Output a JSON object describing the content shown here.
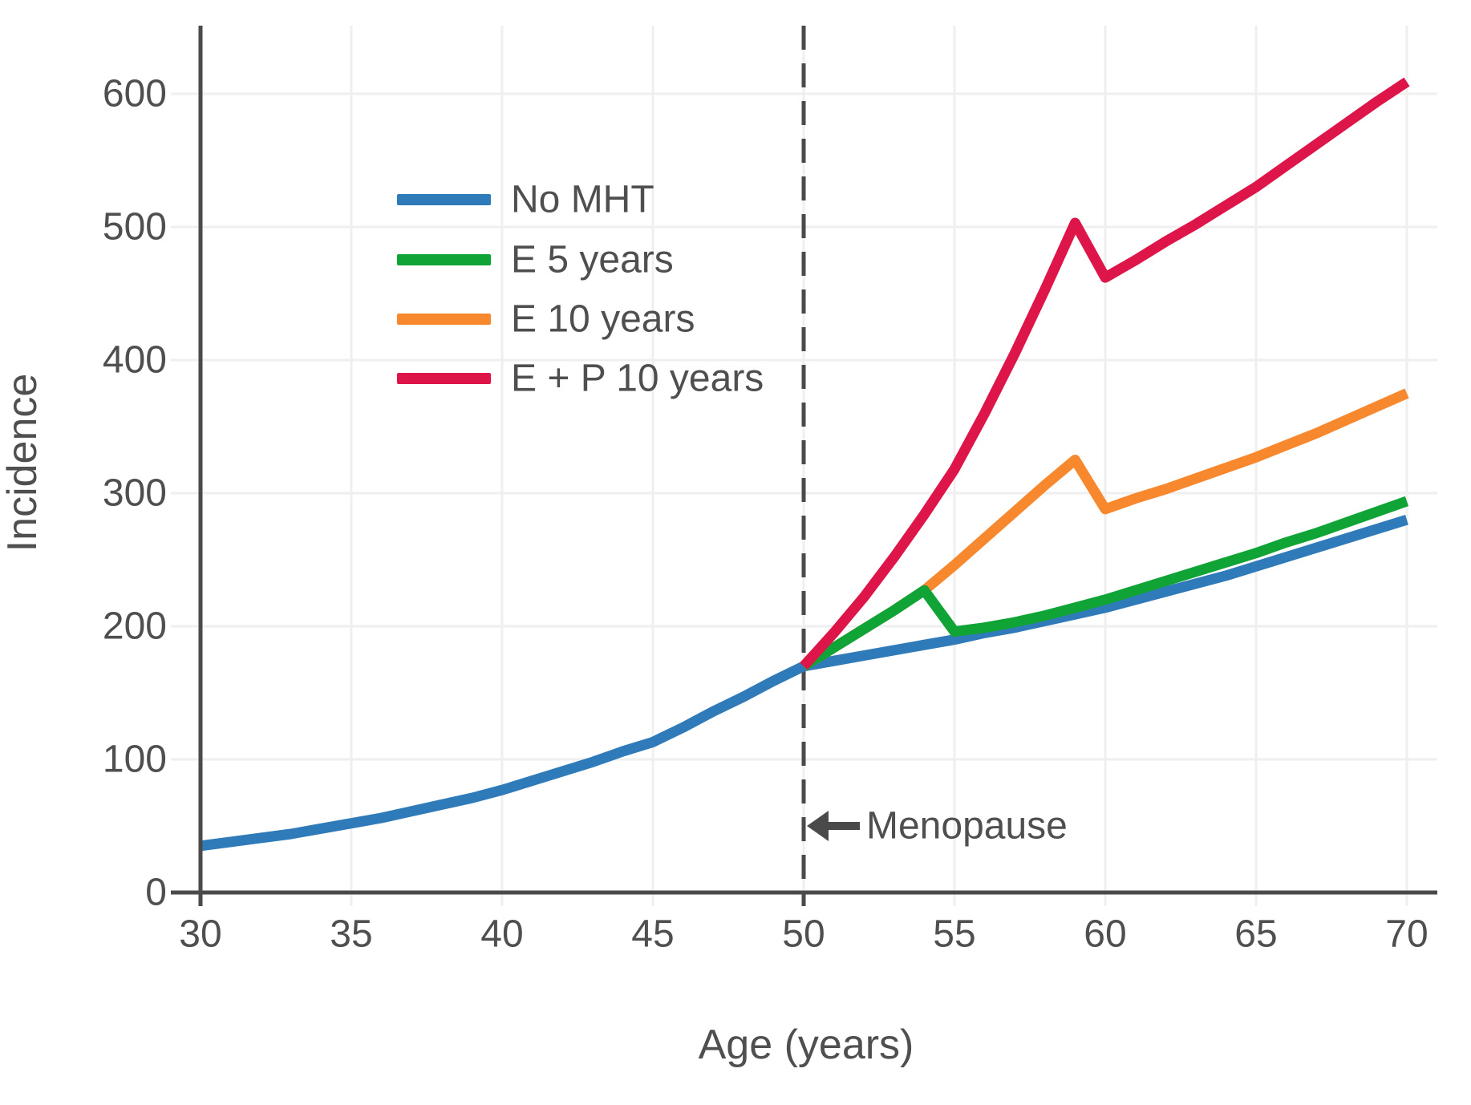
{
  "chart_data": {
    "type": "line",
    "title": "",
    "xlabel": "Age (years)",
    "ylabel": "Incidence",
    "x_ticks": [
      30,
      35,
      40,
      45,
      50,
      55,
      60,
      65,
      70
    ],
    "y_ticks": [
      0,
      100,
      200,
      300,
      400,
      500,
      600
    ],
    "xlim": [
      30,
      71
    ],
    "ylim": [
      0,
      650
    ],
    "grid": true,
    "legend_position": "upper-left-inside",
    "annotation": {
      "label": "Menopause",
      "arrow_direction": "left",
      "points_to_x": 50
    },
    "reference_line": {
      "x": 50,
      "style": "dashed",
      "color": "#4a4a4a"
    },
    "series": [
      {
        "name": "No MHT",
        "color": "#2f7ab8",
        "points": [
          [
            30,
            35
          ],
          [
            31,
            38
          ],
          [
            32,
            41
          ],
          [
            33,
            44
          ],
          [
            34,
            48
          ],
          [
            35,
            52
          ],
          [
            36,
            56
          ],
          [
            37,
            61
          ],
          [
            38,
            66
          ],
          [
            39,
            71
          ],
          [
            40,
            77
          ],
          [
            41,
            84
          ],
          [
            42,
            91
          ],
          [
            43,
            98
          ],
          [
            44,
            106
          ],
          [
            45,
            113
          ],
          [
            46,
            124
          ],
          [
            47,
            136
          ],
          [
            48,
            147
          ],
          [
            49,
            159
          ],
          [
            50,
            170
          ],
          [
            51,
            174
          ],
          [
            52,
            178
          ],
          [
            53,
            182
          ],
          [
            54,
            186
          ],
          [
            55,
            190
          ],
          [
            56,
            195
          ],
          [
            57,
            199
          ],
          [
            58,
            204
          ],
          [
            59,
            209
          ],
          [
            60,
            214
          ],
          [
            61,
            220
          ],
          [
            62,
            226
          ],
          [
            63,
            232
          ],
          [
            64,
            238
          ],
          [
            65,
            245
          ],
          [
            66,
            252
          ],
          [
            67,
            259
          ],
          [
            68,
            266
          ],
          [
            69,
            273
          ],
          [
            70,
            280
          ]
        ]
      },
      {
        "name": "E 5 years",
        "color": "#10a437",
        "points": [
          [
            50,
            170
          ],
          [
            51,
            184
          ],
          [
            52,
            198
          ],
          [
            53,
            212
          ],
          [
            54,
            227
          ],
          [
            55,
            196
          ],
          [
            56,
            199
          ],
          [
            57,
            203
          ],
          [
            58,
            208
          ],
          [
            59,
            214
          ],
          [
            60,
            220
          ],
          [
            61,
            227
          ],
          [
            62,
            234
          ],
          [
            63,
            241
          ],
          [
            64,
            248
          ],
          [
            65,
            255
          ],
          [
            66,
            263
          ],
          [
            67,
            270
          ],
          [
            68,
            278
          ],
          [
            69,
            286
          ],
          [
            70,
            294
          ]
        ]
      },
      {
        "name": "E 10 years",
        "color": "#f8882e",
        "points": [
          [
            50,
            170
          ],
          [
            51,
            184
          ],
          [
            52,
            198
          ],
          [
            53,
            212
          ],
          [
            54,
            227
          ],
          [
            55,
            246
          ],
          [
            56,
            266
          ],
          [
            57,
            286
          ],
          [
            58,
            306
          ],
          [
            59,
            325
          ],
          [
            60,
            288
          ],
          [
            61,
            296
          ],
          [
            62,
            303
          ],
          [
            63,
            311
          ],
          [
            64,
            319
          ],
          [
            65,
            327
          ],
          [
            66,
            336
          ],
          [
            67,
            345
          ],
          [
            68,
            355
          ],
          [
            69,
            365
          ],
          [
            70,
            375
          ]
        ]
      },
      {
        "name": "E + P 10 years",
        "color": "#de1549",
        "points": [
          [
            50,
            170
          ],
          [
            51,
            195
          ],
          [
            52,
            222
          ],
          [
            53,
            252
          ],
          [
            54,
            284
          ],
          [
            55,
            318
          ],
          [
            56,
            360
          ],
          [
            57,
            405
          ],
          [
            58,
            453
          ],
          [
            59,
            503
          ],
          [
            60,
            462
          ],
          [
            61,
            475
          ],
          [
            62,
            489
          ],
          [
            63,
            502
          ],
          [
            64,
            516
          ],
          [
            65,
            530
          ],
          [
            66,
            546
          ],
          [
            67,
            562
          ],
          [
            68,
            578
          ],
          [
            69,
            594
          ],
          [
            70,
            609
          ]
        ]
      }
    ]
  },
  "style_colors": {
    "axis": "#4a4a4a",
    "grid": "#efefef",
    "text": "#4f4f4f"
  }
}
